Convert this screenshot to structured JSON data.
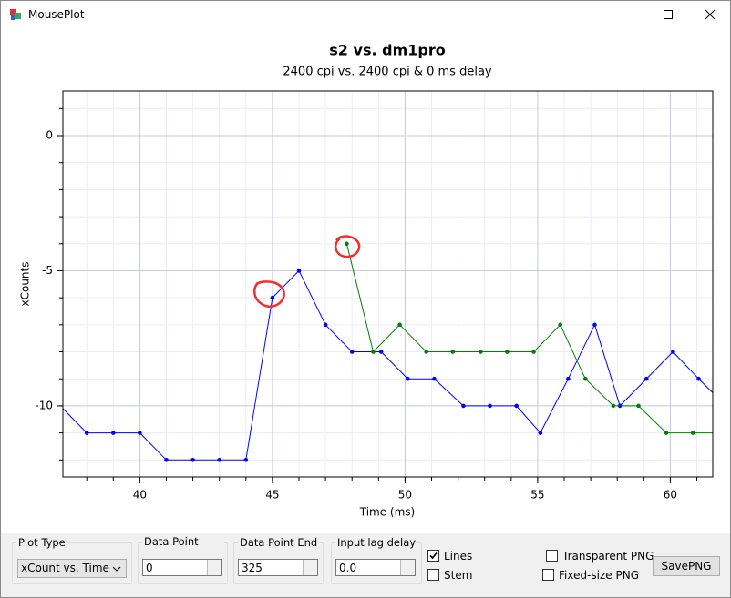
{
  "window": {
    "title": "MousePlot"
  },
  "chart_data": {
    "type": "line",
    "title": "s2 vs. dm1pro",
    "subtitle": "2400 cpi vs. 2400 cpi & 0 ms delay",
    "x_label": "Time (ms)",
    "y_label": "xCounts",
    "xlim": [
      37.1,
      61.6
    ],
    "ylim": [
      -12.63,
      1.65
    ],
    "xticks": [
      40,
      45,
      50,
      55,
      60
    ],
    "yticks": [
      0,
      -5,
      -10
    ],
    "grid": true,
    "minor_grid": true,
    "markers": true,
    "series": [
      {
        "color": "#0000ff",
        "x": [
          37.0,
          38.0,
          39.0,
          40.0,
          41.0,
          42.0,
          43.0,
          44.0,
          45.0,
          46.0,
          47.0,
          48.0,
          49.1,
          50.1,
          51.1,
          52.2,
          53.2,
          54.2,
          55.1,
          56.15,
          57.15,
          58.1,
          59.1,
          60.1,
          61.07,
          62.1
        ],
        "values": [
          -10,
          -11,
          -11,
          -11,
          -12,
          -12,
          -12,
          -12,
          -6,
          -5,
          -7,
          -8,
          -8,
          -9,
          -9,
          -10,
          -10,
          -10,
          -11,
          -9,
          -7,
          -10,
          -9,
          -8,
          -9,
          -10
        ]
      },
      {
        "color": "#008000",
        "x": [
          47.8,
          48.8,
          49.8,
          50.8,
          51.8,
          52.85,
          53.85,
          54.85,
          55.85,
          56.8,
          57.85,
          58.8,
          59.85,
          60.85,
          61.85
        ],
        "values": [
          -4,
          -8,
          -7,
          -8,
          -8,
          -8,
          -8,
          -8,
          -7,
          -9,
          -10,
          -10,
          -11,
          -11,
          -11
        ]
      }
    ]
  },
  "controls": {
    "plot_type": {
      "label": "Plot Type",
      "value": "xCount vs. Time"
    },
    "start": {
      "label": "Data Point Start",
      "value": "0"
    },
    "end": {
      "label": "Data Point End",
      "value": "325"
    },
    "lag": {
      "label": "Input lag delay",
      "value": "0.0"
    },
    "lines": {
      "label": "Lines",
      "checked": true
    },
    "stem": {
      "label": "Stem",
      "checked": false
    },
    "transparent": {
      "label": "Transparent PNG",
      "checked": false
    },
    "fixed_size": {
      "label": "Fixed-size PNG",
      "checked": false
    },
    "save": {
      "label": "SavePNG"
    }
  }
}
